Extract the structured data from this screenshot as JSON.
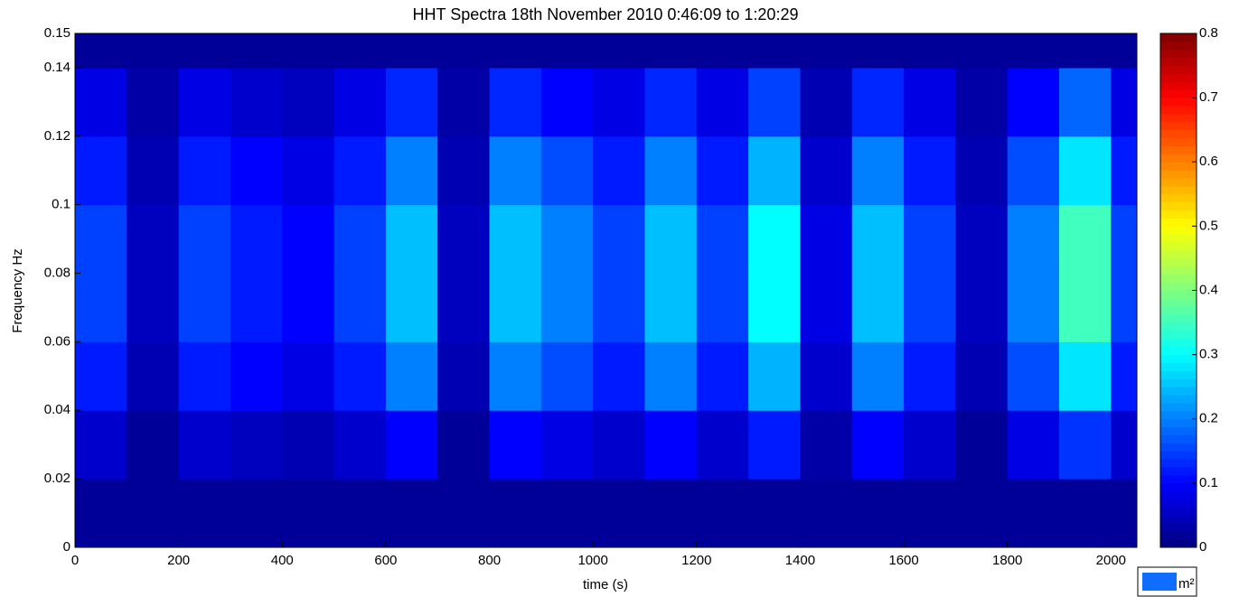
{
  "chart_data": {
    "type": "heatmap",
    "title": "HHT Spectra  18th November 2010 0:46:09 to 1:20:29",
    "x_label": "time (s)",
    "y_label": "Frequency Hz",
    "colorbar_unit": "m²",
    "colormap": "jet",
    "xbins": [
      0,
      100,
      200,
      300,
      400,
      500,
      600,
      700,
      800,
      900,
      1000,
      1100,
      1200,
      1300,
      1400,
      1500,
      1600,
      1700,
      1800,
      1900,
      2000,
      2050
    ],
    "ybins": [
      0,
      0.02,
      0.04,
      0.06,
      0.08,
      0.1,
      0.12,
      0.14,
      0.15
    ],
    "z": [
      [
        0.02,
        0.02,
        0.02,
        0.02,
        0.02,
        0.02,
        0.02,
        0.02,
        0.02,
        0.02,
        0.02,
        0.02,
        0.02,
        0.02,
        0.02,
        0.02,
        0.02,
        0.02,
        0.02,
        0.02,
        0.02
      ],
      [
        0.06,
        0.02,
        0.06,
        0.05,
        0.04,
        0.06,
        0.1,
        0.02,
        0.1,
        0.08,
        0.06,
        0.1,
        0.06,
        0.12,
        0.03,
        0.1,
        0.06,
        0.02,
        0.08,
        0.14,
        0.06
      ],
      [
        0.12,
        0.04,
        0.12,
        0.1,
        0.08,
        0.12,
        0.2,
        0.04,
        0.2,
        0.16,
        0.12,
        0.2,
        0.12,
        0.24,
        0.06,
        0.2,
        0.12,
        0.04,
        0.16,
        0.28,
        0.12
      ],
      [
        0.15,
        0.05,
        0.15,
        0.12,
        0.1,
        0.15,
        0.25,
        0.05,
        0.25,
        0.2,
        0.15,
        0.25,
        0.15,
        0.3,
        0.08,
        0.25,
        0.15,
        0.05,
        0.2,
        0.35,
        0.15
      ],
      [
        0.15,
        0.05,
        0.15,
        0.12,
        0.1,
        0.15,
        0.25,
        0.05,
        0.25,
        0.2,
        0.15,
        0.25,
        0.15,
        0.3,
        0.08,
        0.25,
        0.15,
        0.05,
        0.2,
        0.35,
        0.15
      ],
      [
        0.12,
        0.04,
        0.12,
        0.1,
        0.08,
        0.12,
        0.2,
        0.04,
        0.2,
        0.16,
        0.12,
        0.2,
        0.12,
        0.24,
        0.06,
        0.2,
        0.12,
        0.04,
        0.16,
        0.28,
        0.12
      ],
      [
        0.08,
        0.03,
        0.08,
        0.06,
        0.05,
        0.08,
        0.13,
        0.03,
        0.13,
        0.1,
        0.08,
        0.13,
        0.08,
        0.15,
        0.04,
        0.13,
        0.08,
        0.03,
        0.1,
        0.18,
        0.08
      ],
      [
        0.02,
        0.02,
        0.02,
        0.02,
        0.02,
        0.02,
        0.02,
        0.02,
        0.02,
        0.02,
        0.02,
        0.02,
        0.02,
        0.02,
        0.02,
        0.02,
        0.02,
        0.02,
        0.02,
        0.02,
        0.02
      ]
    ],
    "xlim": [
      0,
      2050
    ],
    "xticks": [
      0,
      200,
      400,
      600,
      800,
      1000,
      1200,
      1400,
      1600,
      1800,
      2000
    ],
    "ylim": [
      0,
      0.15
    ],
    "yticks": [
      0,
      0.02,
      0.04,
      0.06,
      0.08,
      0.1,
      0.12,
      0.14,
      0.15
    ],
    "clim": [
      0,
      0.8
    ],
    "cticks": [
      0,
      0.1,
      0.2,
      0.3,
      0.4,
      0.5,
      0.6,
      0.7,
      0.8
    ]
  }
}
